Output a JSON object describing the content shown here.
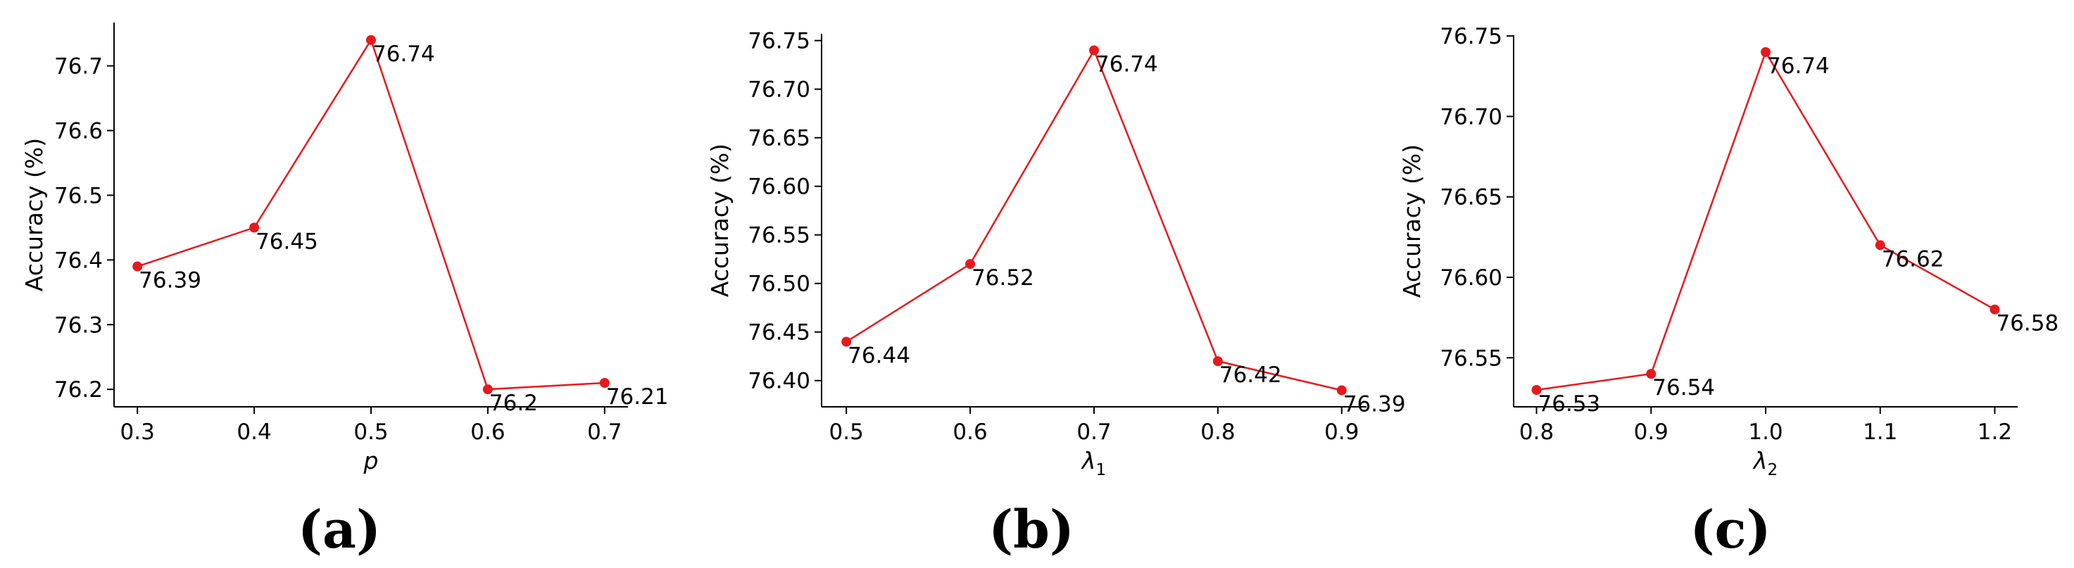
{
  "chart_data": [
    {
      "type": "line",
      "panel_label": "(a)",
      "xlabel": "p",
      "xlabel_sub": "",
      "ylabel": "Accuracy (%)",
      "x": [
        0.3,
        0.4,
        0.5,
        0.6,
        0.7
      ],
      "xticks": [
        "0.3",
        "0.4",
        "0.5",
        "0.6",
        "0.7"
      ],
      "xlim": [
        0.28,
        0.72
      ],
      "y": [
        76.39,
        76.45,
        76.74,
        76.2,
        76.21
      ],
      "data_labels": [
        "76.39",
        "76.45",
        "76.74",
        "76.2",
        "76.21"
      ],
      "yticks": [
        "76.2",
        "76.3",
        "76.4",
        "76.5",
        "76.6",
        "76.7"
      ],
      "ytick_values": [
        76.2,
        76.3,
        76.4,
        76.5,
        76.6,
        76.7
      ],
      "ylim": [
        76.173,
        76.767
      ],
      "color": "#e8191c",
      "grid": false,
      "legend": "none"
    },
    {
      "type": "line",
      "panel_label": "(b)",
      "xlabel": "λ",
      "xlabel_sub": "1",
      "ylabel": "Accuracy (%)",
      "x": [
        0.5,
        0.6,
        0.7,
        0.8,
        0.9
      ],
      "xticks": [
        "0.5",
        "0.6",
        "0.7",
        "0.8",
        "0.9"
      ],
      "xlim": [
        0.48,
        0.92
      ],
      "y": [
        76.44,
        76.52,
        76.74,
        76.42,
        76.39
      ],
      "data_labels": [
        "76.44",
        "76.52",
        "76.74",
        "76.42",
        "76.39"
      ],
      "yticks": [
        "76.40",
        "76.45",
        "76.50",
        "76.55",
        "76.60",
        "76.65",
        "76.70",
        "76.75"
      ],
      "ytick_values": [
        76.4,
        76.45,
        76.5,
        76.55,
        76.6,
        76.65,
        76.7,
        76.75
      ],
      "ylim": [
        76.373,
        76.757
      ],
      "color": "#e8191c",
      "grid": false,
      "legend": "none"
    },
    {
      "type": "line",
      "panel_label": "(c)",
      "xlabel": "λ",
      "xlabel_sub": "2",
      "ylabel": "Accuracy (%)",
      "x": [
        0.8,
        0.9,
        1.0,
        1.1,
        1.2
      ],
      "xticks": [
        "0.8",
        "0.9",
        "1.0",
        "1.1",
        "1.2"
      ],
      "xlim": [
        0.78,
        1.22
      ],
      "y": [
        76.53,
        76.54,
        76.74,
        76.62,
        76.58
      ],
      "data_labels": [
        "76.53",
        "76.54",
        "76.74",
        "76.62",
        "76.58"
      ],
      "yticks": [
        "76.55",
        "76.60",
        "76.65",
        "76.70",
        "76.75"
      ],
      "ytick_values": [
        76.55,
        76.6,
        76.65,
        76.7,
        76.75
      ],
      "ylim": [
        76.5195,
        76.7505
      ],
      "color": "#e8191c",
      "grid": false,
      "legend": "none"
    }
  ]
}
